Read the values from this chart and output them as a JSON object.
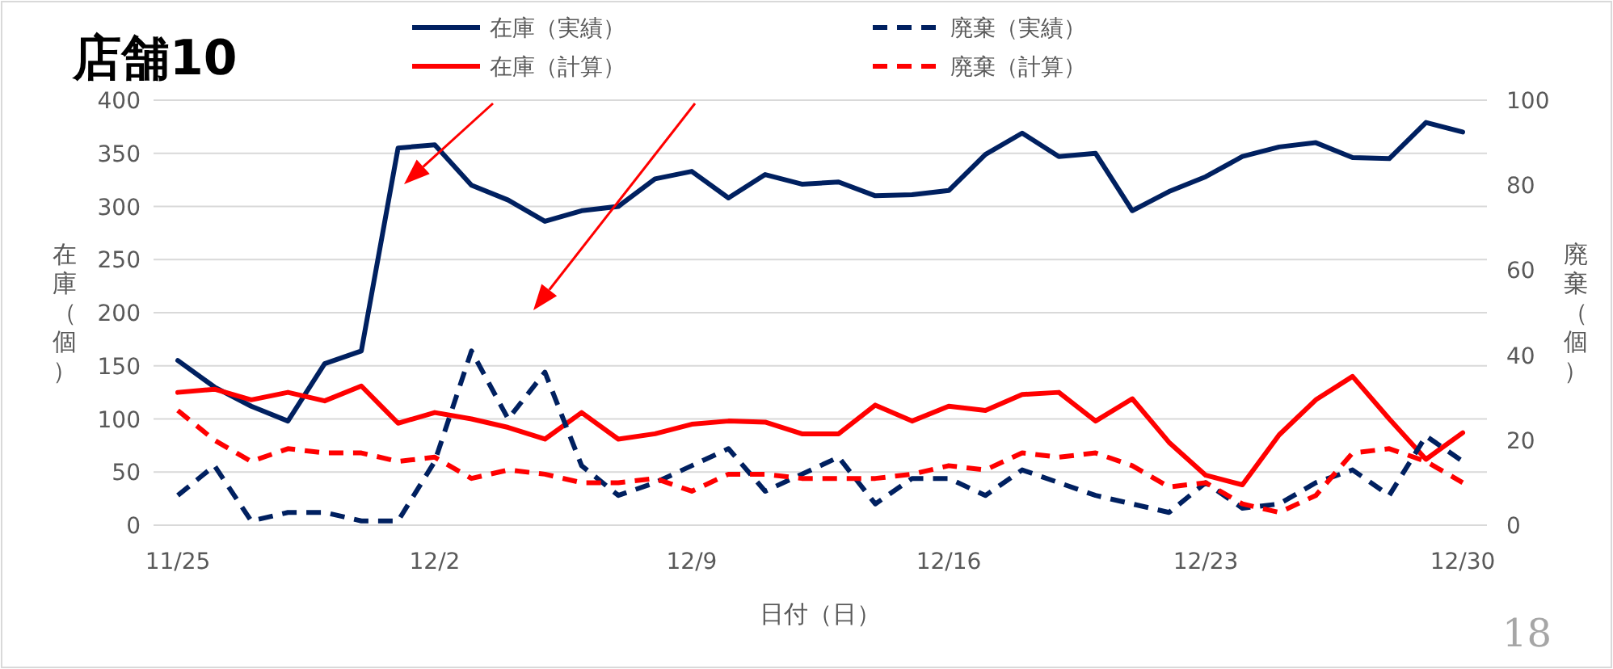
{
  "chart_data": {
    "type": "line",
    "title": "店舗10",
    "xlabel": "日付（日）",
    "ylabel": "在庫（個）",
    "y2label": "廃棄（個）",
    "annotations": [
      "18"
    ],
    "categories": [
      "11/25",
      null,
      null,
      null,
      null,
      null,
      null,
      "12/2",
      null,
      null,
      null,
      null,
      null,
      null,
      "12/9",
      null,
      null,
      null,
      null,
      null,
      null,
      "12/16",
      null,
      null,
      null,
      null,
      null,
      null,
      "12/23",
      null,
      null,
      null,
      null,
      null,
      null,
      "12/30"
    ],
    "ylim": [
      0,
      400
    ],
    "yticks": [
      0,
      50,
      100,
      150,
      200,
      250,
      300,
      350,
      400
    ],
    "y2lim": [
      0,
      100
    ],
    "y2ticks": [
      0,
      20,
      40,
      60,
      80,
      100
    ],
    "grid": "y",
    "legend": "top",
    "series": [
      {
        "name": "在庫（実績）",
        "color": "#002060",
        "line_style": "solid",
        "axis": "y",
        "values": [
          155,
          130,
          112,
          98,
          152,
          164,
          355,
          358,
          320,
          306,
          286,
          296,
          300,
          326,
          333,
          308,
          330,
          321,
          323,
          310,
          311,
          315,
          349,
          369,
          347,
          350,
          296,
          314,
          328,
          347,
          356,
          360,
          346,
          345,
          379,
          370
        ]
      },
      {
        "name": "在庫（計算）",
        "color": "#ff0000",
        "line_style": "solid",
        "axis": "y",
        "values": [
          125,
          128,
          118,
          125,
          117,
          131,
          96,
          106,
          100,
          92,
          81,
          106,
          81,
          86,
          95,
          98,
          97,
          86,
          86,
          113,
          98,
          112,
          108,
          123,
          125,
          98,
          119,
          78,
          47,
          38,
          85,
          118,
          140,
          100,
          62,
          87
        ]
      },
      {
        "name": "廃棄（実績）",
        "color": "#002060",
        "line_style": "dashed",
        "axis": "y2",
        "values": [
          7,
          14,
          1,
          3,
          3,
          1,
          1,
          15,
          41,
          25,
          36,
          14,
          7,
          10,
          14,
          18,
          8,
          12,
          16,
          5,
          11,
          11,
          7,
          13,
          10,
          7,
          5,
          3,
          10,
          4,
          5,
          10,
          13,
          7,
          21,
          15
        ]
      },
      {
        "name": "廃棄（計算）",
        "color": "#ff0000",
        "line_style": "dashed",
        "axis": "y2",
        "values": [
          27,
          20,
          15,
          18,
          17,
          17,
          15,
          16,
          11,
          13,
          12,
          10,
          10,
          11,
          8,
          12,
          12,
          11,
          11,
          11,
          12,
          14,
          13,
          17,
          16,
          17,
          14,
          9,
          10,
          5,
          3,
          7,
          17,
          18,
          15,
          10
        ]
      }
    ]
  }
}
